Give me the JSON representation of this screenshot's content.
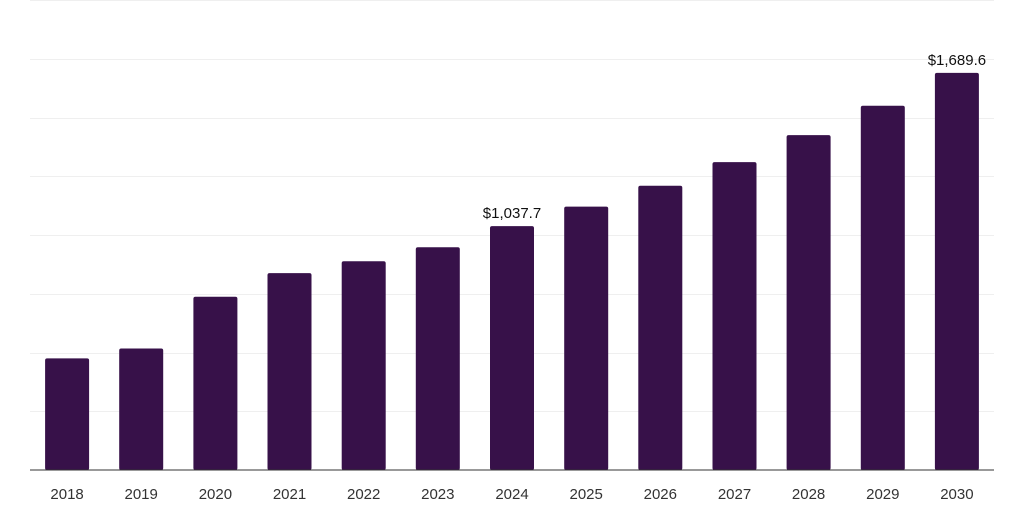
{
  "chart_data": {
    "type": "bar",
    "title": "",
    "xlabel": "",
    "ylabel": "",
    "categories": [
      "2018",
      "2019",
      "2020",
      "2021",
      "2022",
      "2023",
      "2024",
      "2025",
      "2026",
      "2027",
      "2028",
      "2029",
      "2030"
    ],
    "values": [
      475.0,
      517.0,
      737.0,
      838.0,
      888.0,
      948.0,
      1037.7,
      1121.0,
      1210.0,
      1310.0,
      1425.0,
      1550.0,
      1689.6
    ],
    "data_labels": [
      {
        "category": "2024",
        "text": "$1,037.7"
      },
      {
        "category": "2030",
        "text": "$1,689.6"
      }
    ],
    "ylim": [
      0,
      2000
    ],
    "gridlines": true,
    "y_tick_labels_shown": false,
    "legend": "none",
    "colors": {
      "bar": "#371149",
      "gridline": "#efefef",
      "axis": "#333333",
      "text": "#333333"
    }
  }
}
